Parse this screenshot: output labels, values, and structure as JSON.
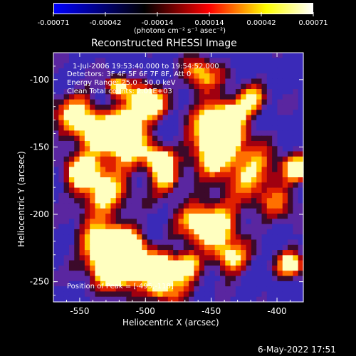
{
  "colorbar": {
    "ticks": [
      "-0.00071",
      "-0.00042",
      "-0.00014",
      "0.00014",
      "0.00042",
      "0.00071"
    ],
    "units": "(photons cm⁻² s⁻¹ asec⁻²)",
    "colors": [
      "#0000ff",
      "#000000",
      "#ff0000",
      "#ffff00",
      "#ffffff"
    ]
  },
  "chart_data": {
    "type": "heatmap",
    "title": "Reconstructed RHESSI Image",
    "xlabel": "Heliocentric X (arcsec)",
    "ylabel": "Heliocentric Y (arcsec)",
    "xlim": [
      -570,
      -380
    ],
    "ylim": [
      -265,
      -80
    ],
    "xticks": [
      -550,
      -500,
      -450,
      -400
    ],
    "yticks": [
      -100,
      -150,
      -200,
      -250
    ],
    "annotations": [
      "1-Jul-2006 19:53:40.000 to 19:54:52.000",
      "Detectors: 3F 4F 5F 6F 7F 8F, Att 0",
      "Energy Range: 25.0 - 50.0 keV",
      "Clean    Total counts: 2.01E+03"
    ],
    "peak_label": "Position of Peak = [-495,-118]",
    "peak": [
      -495,
      -118
    ]
  },
  "footer": {
    "date": "6-May-2022 17:51"
  }
}
